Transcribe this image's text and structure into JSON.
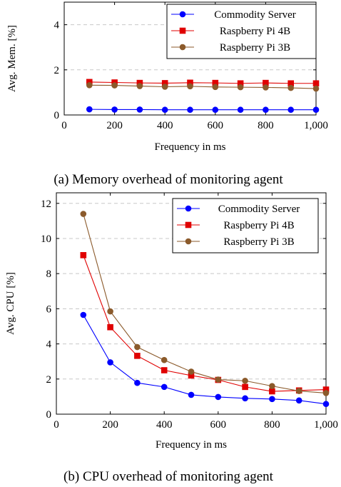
{
  "colors": {
    "commodity": "#0000ff",
    "rpi4b": "#e00000",
    "rpi3b": "#8b5a2b",
    "grid": "#c8c8c8"
  },
  "chart_data": [
    {
      "type": "line",
      "caption": "(a) Memory overhead of monitoring agent",
      "xlabel": "Frequency in ms",
      "ylabel": "Avg. Mem. [%]",
      "xlim": [
        0,
        1000
      ],
      "ylim": [
        0,
        5
      ],
      "xticks": [
        0,
        200,
        400,
        600,
        800,
        1000
      ],
      "xtick_labels": [
        "0",
        "200",
        "400",
        "600",
        "800",
        "1,000"
      ],
      "yticks": [
        0,
        2,
        4
      ],
      "ytick_labels": [
        "0",
        "2",
        "4"
      ],
      "grid": "horizontal dashed",
      "legend_position": "top-right",
      "x": [
        100,
        200,
        300,
        400,
        500,
        600,
        700,
        800,
        900,
        1000
      ],
      "series": [
        {
          "name": "Commodity Server",
          "marker": "circle",
          "color_key": "commodity",
          "values": [
            0.25,
            0.24,
            0.24,
            0.23,
            0.23,
            0.23,
            0.23,
            0.23,
            0.23,
            0.23
          ]
        },
        {
          "name": "Raspberry Pi 4B",
          "marker": "square",
          "color_key": "rpi4b",
          "values": [
            1.46,
            1.44,
            1.42,
            1.41,
            1.43,
            1.42,
            1.4,
            1.42,
            1.4,
            1.4
          ]
        },
        {
          "name": "Raspberry Pi 3B",
          "marker": "circle",
          "color_key": "rpi3b",
          "values": [
            1.32,
            1.31,
            1.28,
            1.25,
            1.27,
            1.24,
            1.23,
            1.22,
            1.2,
            1.17
          ]
        }
      ]
    },
    {
      "type": "line",
      "caption": "(b) CPU overhead of monitoring agent",
      "xlabel": "Frequency in ms",
      "ylabel": "Avg. CPU [%]",
      "xlim": [
        0,
        1000
      ],
      "ylim": [
        0,
        12.6
      ],
      "xticks": [
        0,
        200,
        400,
        600,
        800,
        1000
      ],
      "xtick_labels": [
        "0",
        "200",
        "400",
        "600",
        "800",
        "1,000"
      ],
      "yticks": [
        0,
        2,
        4,
        6,
        8,
        10,
        12
      ],
      "ytick_labels": [
        "0",
        "2",
        "4",
        "6",
        "8",
        "10",
        "12"
      ],
      "grid": "horizontal dashed",
      "legend_position": "top-right",
      "x": [
        100,
        200,
        300,
        400,
        500,
        600,
        700,
        800,
        900,
        1000
      ],
      "series": [
        {
          "name": "Commodity Server",
          "marker": "circle",
          "color_key": "commodity",
          "values": [
            5.65,
            2.95,
            1.78,
            1.55,
            1.1,
            0.98,
            0.9,
            0.86,
            0.78,
            0.58
          ]
        },
        {
          "name": "Raspberry Pi 4B",
          "marker": "square",
          "color_key": "rpi4b",
          "values": [
            9.05,
            4.95,
            3.32,
            2.5,
            2.2,
            1.95,
            1.55,
            1.3,
            1.35,
            1.4
          ]
        },
        {
          "name": "Raspberry Pi 3B",
          "marker": "circle",
          "color_key": "rpi3b",
          "values": [
            11.4,
            5.85,
            3.82,
            3.08,
            2.42,
            1.97,
            1.9,
            1.6,
            1.32,
            1.2
          ]
        }
      ]
    }
  ]
}
